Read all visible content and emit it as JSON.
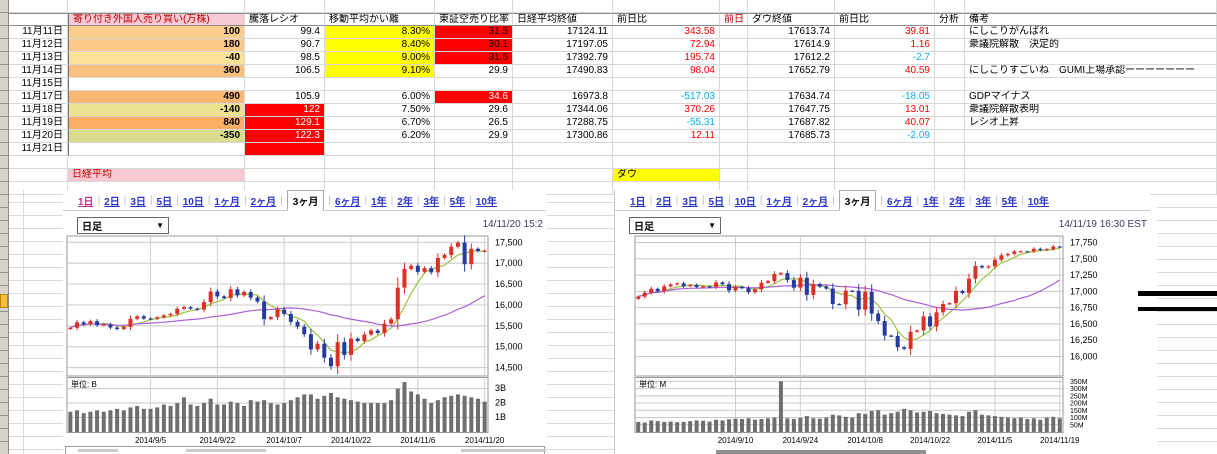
{
  "colors": {
    "up_candle": "#DD2F26",
    "down_candle": "#273B9E",
    "ma_short": "#99C43C",
    "ma_long": "#A95FD8",
    "volume_bar": "#6E6E6E",
    "tab_link": "#2B35C8",
    "tab_visited": "#C2338A",
    "positive_change": "#FF0000",
    "negative_change": "#00B0F0",
    "highlight_red": "#FF0000",
    "highlight_yellow": "#FFFF00",
    "nikkei_label_bg": "#F7C9D3",
    "dow_label_bg": "#FFFF00",
    "header_red_text": "#C00000"
  },
  "spreadsheet": {
    "headers": {
      "date": "",
      "foreign": "寄り付き外国人売り買い(万株)",
      "ratio": "騰落レシオ",
      "madev": "移動平均かい離",
      "short": "東証空売り比率",
      "nk": "日経平均終値",
      "nkchg": "前日比",
      "prev": "前日",
      "dow": "ダウ終値",
      "dowchg": "前日比",
      "ana": "分析",
      "note": "備考"
    },
    "rows": [
      {
        "date": "11月11日",
        "foreign": "100",
        "foreign_bg": "#FCCE8E",
        "ratio": "99.4",
        "ratio_bg": "",
        "ratio_fg": "",
        "madev": "8.30%",
        "madev_bg": "#FFFF00",
        "short": "31.5",
        "short_bg": "#FF0000",
        "short_fg": "#000000",
        "nk": "17124.11",
        "nkchg": "343.58",
        "dow": "17613.74",
        "dowchg": "39.81",
        "note": "にしこりがんばれ"
      },
      {
        "date": "11月12日",
        "foreign": "180",
        "foreign_bg": "#FBC98A",
        "ratio": "90.7",
        "ratio_bg": "",
        "ratio_fg": "",
        "madev": "8.40%",
        "madev_bg": "#FFFF00",
        "short": "30.1",
        "short_bg": "#FF0000",
        "short_fg": "#000000",
        "nk": "17197.05",
        "nkchg": "72.94",
        "dow": "17614.9",
        "dowchg": "1.16",
        "note": "衆議院解散　決定的"
      },
      {
        "date": "11月13日",
        "foreign": "-40",
        "foreign_bg": "#FCE299",
        "ratio": "98.5",
        "ratio_bg": "",
        "ratio_fg": "",
        "madev": "9.00%",
        "madev_bg": "#FFFF00",
        "short": "31.6",
        "short_bg": "#FF0000",
        "short_fg": "#000000",
        "nk": "17392.79",
        "nkchg": "195.74",
        "dow": "17612.2",
        "dowchg": "-2.7",
        "note": ""
      },
      {
        "date": "11月14日",
        "foreign": "360",
        "foreign_bg": "#FAC07E",
        "ratio": "106.5",
        "ratio_bg": "",
        "ratio_fg": "",
        "madev": "9.10%",
        "madev_bg": "#FFFF00",
        "short": "29.9",
        "short_bg": "",
        "short_fg": "",
        "nk": "17490.83",
        "nkchg": "98.04",
        "dow": "17652.79",
        "dowchg": "40.59",
        "note": "にしこりすごいね　GUMI上場承認ーーーーーーー"
      },
      {
        "date": "11月15日",
        "foreign": "",
        "foreign_bg": "",
        "ratio": "",
        "ratio_bg": "",
        "ratio_fg": "",
        "madev": "",
        "madev_bg": "",
        "short": "",
        "short_bg": "",
        "short_fg": "",
        "nk": "",
        "nkchg": "",
        "dow": "",
        "dowchg": "",
        "note": ""
      },
      {
        "date": "11月17日",
        "foreign": "490",
        "foreign_bg": "#FAB873",
        "ratio": "105.9",
        "ratio_bg": "",
        "ratio_fg": "",
        "madev": "6.00%",
        "madev_bg": "",
        "short": "34.6",
        "short_bg": "#FF0000",
        "short_fg": "#FFFFFF",
        "nk": "16973.8",
        "nkchg": "-517.03",
        "dow": "17634.74",
        "dowchg": "-18.05",
        "note": "GDPマイナス"
      },
      {
        "date": "11月18日",
        "foreign": "-140",
        "foreign_bg": "#EEE18F",
        "ratio": "122",
        "ratio_bg": "#FF0000",
        "ratio_fg": "#FFFFFF",
        "madev": "7.50%",
        "madev_bg": "",
        "short": "29.6",
        "short_bg": "",
        "short_fg": "",
        "nk": "17344.06",
        "nkchg": "370.26",
        "dow": "17647.75",
        "dowchg": "13.01",
        "note": "衆議院解散表明"
      },
      {
        "date": "11月19日",
        "foreign": "840",
        "foreign_bg": "#F9AE63",
        "ratio": "129.1",
        "ratio_bg": "#FF0000",
        "ratio_fg": "#FFFFFF",
        "madev": "6.70%",
        "madev_bg": "",
        "short": "26.5",
        "short_bg": "",
        "short_fg": "",
        "nk": "17288.75",
        "nkchg": "-55.31",
        "dow": "17687.82",
        "dowchg": "40.07",
        "note": "レシオ上昇"
      },
      {
        "date": "11月20日",
        "foreign": "-350",
        "foreign_bg": "#D9DC8C",
        "ratio": "122.3",
        "ratio_bg": "#FF0000",
        "ratio_fg": "#FFFFFF",
        "madev": "6.20%",
        "madev_bg": "",
        "short": "29.9",
        "short_bg": "",
        "short_fg": "",
        "nk": "17300.86",
        "nkchg": "12.11",
        "dow": "17685.73",
        "dowchg": "-2.09",
        "note": ""
      },
      {
        "date": "11月21日",
        "foreign": "",
        "foreign_bg": "",
        "ratio": "",
        "ratio_bg": "#FF0000",
        "ratio_fg": "",
        "madev": "",
        "madev_bg": "",
        "short": "",
        "short_bg": "",
        "short_fg": "",
        "nk": "",
        "nkchg": "",
        "dow": "",
        "dowchg": "",
        "note": ""
      }
    ],
    "section_labels": {
      "nikkei": "日経平均",
      "dow": "ダウ"
    }
  },
  "chart_tabs": [
    "1日",
    "2日",
    "3日",
    "5日",
    "10日",
    "1ヶ月",
    "2ヶ月",
    "3ヶ月",
    "6ヶ月",
    "1年",
    "2年",
    "3年",
    "5年",
    "10年"
  ],
  "chart_data": [
    {
      "type": "candlestick",
      "name": "日経平均",
      "interval": "日足",
      "selected_tab": "3ヶ月",
      "first_tab_visited": true,
      "timestamp": "14/11/20 15:2",
      "ylim": [
        14300,
        17650
      ],
      "yticks": [
        14500,
        15000,
        15500,
        16000,
        16500,
        17000,
        17500
      ],
      "xticks": [
        {
          "i": 12,
          "label": "2014/9/5"
        },
        {
          "i": 22,
          "label": "2014/9/22"
        },
        {
          "i": 32,
          "label": "2014/10/7"
        },
        {
          "i": 42,
          "label": "2014/10/22"
        },
        {
          "i": 52,
          "label": "2014/11/6"
        },
        {
          "i": 62,
          "label": "2014/11/20"
        }
      ],
      "close": [
        15454,
        15586,
        15539,
        15613,
        15521,
        15534,
        15460,
        15424,
        15476,
        15668,
        15728,
        15676,
        15668,
        15705,
        15749,
        15788,
        15909,
        15948,
        15911,
        15888,
        16067,
        16321,
        16205,
        16167,
        16374,
        16230,
        16310,
        16174,
        16082,
        15661,
        15709,
        15891,
        15784,
        15596,
        15479,
        15301,
        14936,
        15074,
        14738,
        14532,
        15111,
        14804,
        15196,
        15139,
        15292,
        15389,
        15329,
        15554,
        15658,
        16413,
        16862,
        16937,
        16792,
        16880,
        16780,
        17124,
        17197,
        17393,
        17491,
        16974,
        17344,
        17289,
        17301
      ],
      "ohlc_estimated": true,
      "volume_unit_label": "単位: B",
      "volume_max": 3.8,
      "volume_ticks": [
        {
          "v": 1,
          "label": "1B"
        },
        {
          "v": 2,
          "label": "2B"
        },
        {
          "v": 3,
          "label": "3B"
        }
      ],
      "volume": [
        1.4,
        1.5,
        1.3,
        1.4,
        1.5,
        1.4,
        1.5,
        1.6,
        1.5,
        1.7,
        1.8,
        1.6,
        1.6,
        1.7,
        1.9,
        1.8,
        2.0,
        2.4,
        1.9,
        1.8,
        2.0,
        2.3,
        1.9,
        1.9,
        2.1,
        2.0,
        1.8,
        2.2,
        2.1,
        2.2,
        2.0,
        1.9,
        2.0,
        2.2,
        2.4,
        2.6,
        2.6,
        2.3,
        2.5,
        2.7,
        2.4,
        2.3,
        2.2,
        2.1,
        2.0,
        2.0,
        2.0,
        2.0,
        2.2,
        3.0,
        3.45,
        2.8,
        2.6,
        2.3,
        2.0,
        2.2,
        2.4,
        2.5,
        2.6,
        2.5,
        2.4,
        2.3,
        2.1
      ]
    },
    {
      "type": "candlestick",
      "name": "ダウ",
      "interval": "日足",
      "selected_tab": "3ヶ月",
      "first_tab_visited": false,
      "timestamp": "14/11/19 16:30 EST",
      "ylim": [
        15700,
        17850
      ],
      "yticks": [
        16000,
        16250,
        16500,
        16750,
        17000,
        17250,
        17500,
        17750
      ],
      "xticks": [
        {
          "i": 15,
          "label": "2014/9/10"
        },
        {
          "i": 25,
          "label": "2014/9/24"
        },
        {
          "i": 35,
          "label": "2014/10/8"
        },
        {
          "i": 45,
          "label": "2014/10/22"
        },
        {
          "i": 55,
          "label": "2014/11/5"
        },
        {
          "i": 65,
          "label": "2014/11/19"
        }
      ],
      "close": [
        16919,
        16979,
        17039,
        17001,
        17077,
        17107,
        17122,
        17080,
        17098,
        17067,
        17078,
        17069,
        17137,
        17111,
        17014,
        17069,
        17049,
        16987,
        17031,
        17132,
        17157,
        17266,
        17280,
        17173,
        17056,
        17210,
        16946,
        17113,
        17071,
        17043,
        16805,
        16801,
        17010,
        17009,
        16719,
        16994,
        16659,
        16544,
        16321,
        16315,
        16142,
        16117,
        16380,
        16400,
        16615,
        16461,
        16678,
        16805,
        16818,
        17006,
        16974,
        17195,
        17390,
        17366,
        17384,
        17485,
        17554,
        17574,
        17613.74,
        17614.9,
        17612.2,
        17652.79,
        17634.74,
        17647.75,
        17687.82,
        17685.73
      ],
      "ohlc_estimated": true,
      "volume_unit_label": "単位: M",
      "volume_max": 380,
      "volume_ticks": [
        {
          "v": 50,
          "label": "50M"
        },
        {
          "v": 100,
          "label": "100M"
        },
        {
          "v": 150,
          "label": "150M"
        },
        {
          "v": 200,
          "label": "200M"
        },
        {
          "v": 250,
          "label": "250M"
        },
        {
          "v": 300,
          "label": "300M"
        },
        {
          "v": 350,
          "label": "350M"
        }
      ],
      "volume": [
        70,
        65,
        80,
        75,
        70,
        72,
        68,
        70,
        75,
        80,
        78,
        72,
        85,
        80,
        88,
        92,
        90,
        95,
        85,
        90,
        95,
        100,
        350,
        95,
        90,
        98,
        110,
        95,
        92,
        100,
        120,
        115,
        105,
        100,
        130,
        125,
        145,
        150,
        120,
        130,
        140,
        160,
        150,
        135,
        140,
        145,
        130,
        125,
        120,
        115,
        110,
        140,
        150,
        120,
        115,
        110,
        105,
        100,
        95,
        100,
        90,
        95,
        85,
        100,
        105,
        95
      ]
    }
  ]
}
